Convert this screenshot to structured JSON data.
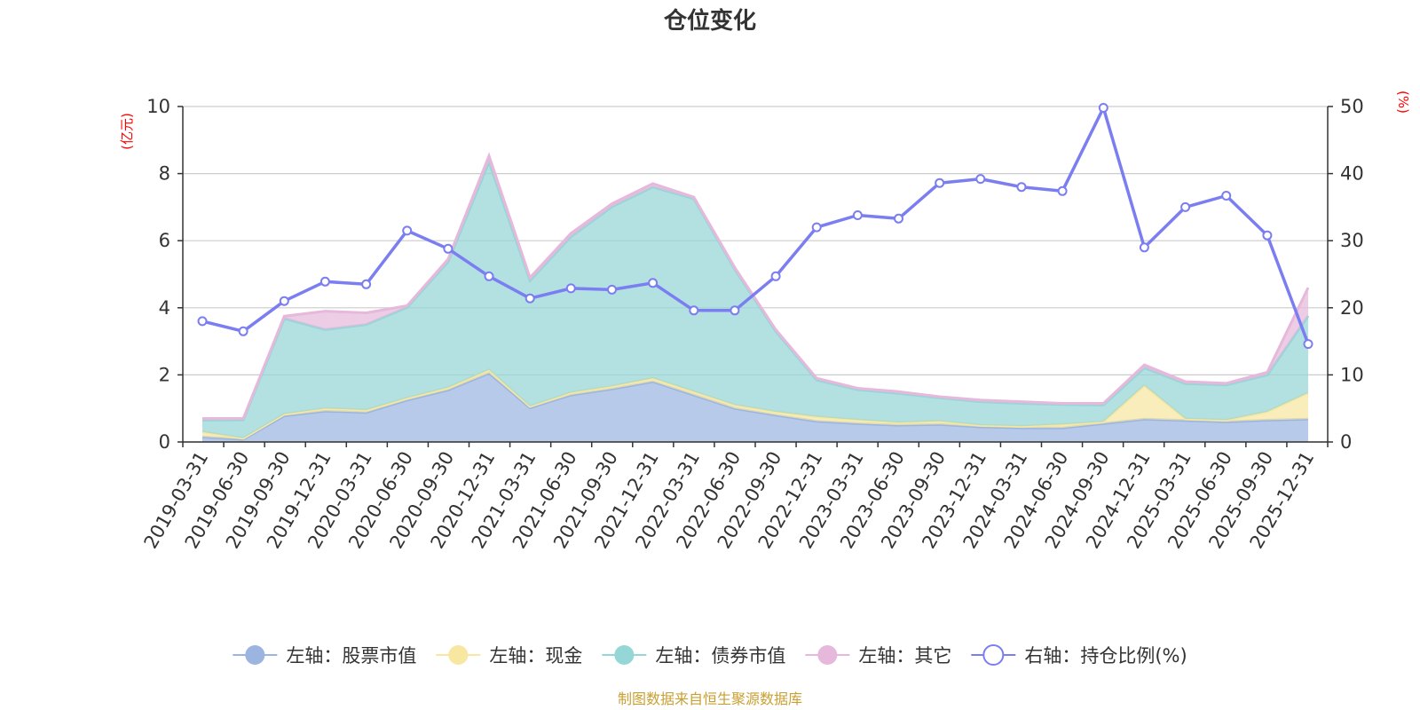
{
  "chart_data": {
    "type": "area",
    "title": "仓位变化",
    "left_unit": "(亿元)",
    "right_unit": "(%)",
    "source": "制图数据来自恒生聚源数据库",
    "ylim_left": [
      0,
      10
    ],
    "ylim_right": [
      0,
      50
    ],
    "yticks_left": [
      0,
      2,
      4,
      6,
      8,
      10
    ],
    "yticks_right": [
      0,
      10,
      20,
      30,
      40,
      50
    ],
    "grid": true,
    "legend_position": "bottom",
    "categories": [
      "2019-03-31",
      "2019-06-30",
      "2019-09-30",
      "2019-12-31",
      "2020-03-31",
      "2020-06-30",
      "2020-09-30",
      "2020-12-31",
      "2021-03-31",
      "2021-06-30",
      "2021-09-30",
      "2021-12-31",
      "2022-03-31",
      "2022-06-30",
      "2022-09-30",
      "2022-12-31",
      "2023-03-31",
      "2023-06-30",
      "2023-09-30",
      "2023-12-31",
      "2024-03-31",
      "2024-06-30",
      "2024-09-30",
      "2024-12-31",
      "2025-03-31",
      "2025-06-30",
      "2025-09-30",
      "2025-12-31"
    ],
    "stacked_series": [
      {
        "name": "左轴：股票市值",
        "color": "#9bb5e0",
        "values": [
          0.15,
          0.08,
          0.78,
          0.92,
          0.88,
          1.25,
          1.55,
          2.05,
          1.02,
          1.4,
          1.58,
          1.8,
          1.4,
          1.0,
          0.8,
          0.62,
          0.55,
          0.5,
          0.52,
          0.45,
          0.42,
          0.42,
          0.55,
          0.68,
          0.64,
          0.6,
          0.65,
          0.68
        ]
      },
      {
        "name": "左轴：现金",
        "color": "#f7e7a1",
        "values": [
          0.15,
          0.03,
          0.05,
          0.08,
          0.07,
          0.06,
          0.07,
          0.1,
          0.04,
          0.07,
          0.08,
          0.1,
          0.1,
          0.1,
          0.1,
          0.13,
          0.11,
          0.08,
          0.1,
          0.05,
          0.05,
          0.1,
          0.05,
          1.0,
          0.05,
          0.05,
          0.25,
          0.78
        ]
      },
      {
        "name": "左轴：债券市值",
        "color": "#95d6d6",
        "values": [
          0.35,
          0.55,
          2.85,
          2.35,
          2.55,
          2.7,
          3.75,
          6.2,
          3.75,
          4.65,
          5.35,
          5.7,
          5.75,
          4.05,
          2.4,
          1.1,
          0.9,
          0.87,
          0.7,
          0.7,
          0.68,
          0.6,
          0.5,
          0.53,
          1.05,
          1.05,
          1.1,
          2.3
        ]
      },
      {
        "name": "左轴：其它",
        "color": "#e6b8dc",
        "values": [
          0.05,
          0.04,
          0.07,
          0.55,
          0.35,
          0.05,
          0.08,
          0.18,
          0.09,
          0.1,
          0.09,
          0.1,
          0.05,
          0.05,
          0.05,
          0.05,
          0.04,
          0.05,
          0.03,
          0.05,
          0.05,
          0.03,
          0.05,
          0.09,
          0.06,
          0.05,
          0.08,
          0.84
        ]
      }
    ],
    "line_series": {
      "name": "右轴：持仓比例(%)",
      "color": "#7b7ef0",
      "values": [
        18.0,
        16.5,
        21.0,
        23.9,
        23.5,
        31.5,
        28.8,
        24.7,
        21.4,
        22.9,
        22.7,
        23.7,
        19.6,
        19.6,
        24.7,
        32.0,
        33.8,
        33.3,
        38.6,
        39.2,
        38.0,
        37.4,
        49.8,
        29.0,
        35.0,
        36.7,
        30.8,
        14.6
      ]
    }
  }
}
